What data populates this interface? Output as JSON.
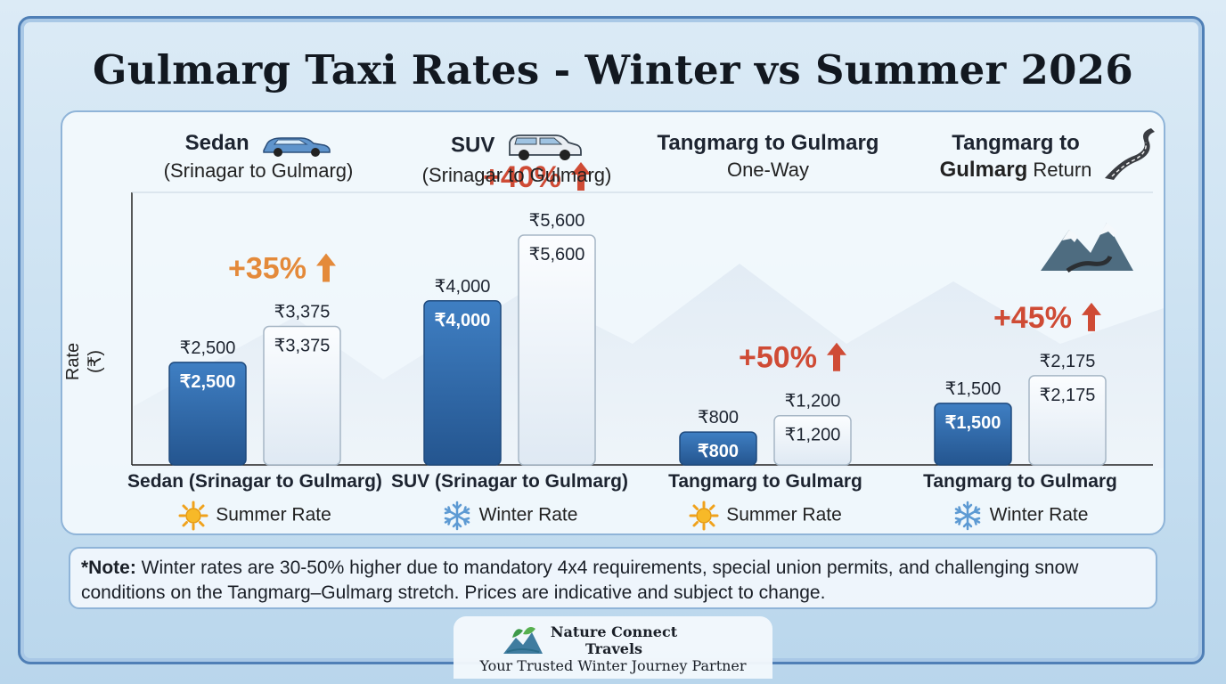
{
  "title": "Gulmarg Taxi Rates - Winter vs Summer 2026",
  "chart_data": {
    "type": "bar",
    "ylabel": "Rate (₹)",
    "ylim": [
      0,
      6600
    ],
    "headers": [
      {
        "line1": "Sedan",
        "line2": "(Srinagar to Gulmarg)",
        "icon": "sedan-car-icon"
      },
      {
        "line1": "SUV",
        "line2": "(Srinagar to Gulmarg)",
        "icon": "suv-car-icon"
      },
      {
        "line1": "Tangmarg to Gulmarg",
        "line2": "One-Way",
        "icon": ""
      },
      {
        "line1": "Tangmarg to",
        "line2_bold": "Gulmarg",
        "line2": "Return",
        "icon": "winding-road-icon"
      }
    ],
    "categories": [
      "Sedan (Srinagar to Gulmarg)",
      "SUV (Srinagar to Gulmarg)",
      "Tangmarg to Gulmarg",
      "Tangmarg to Gulmarg"
    ],
    "legend_labels": [
      "Summer Rate",
      "Winter Rate",
      "Summer Rate",
      "Winter Rate"
    ],
    "legend_icons": [
      "sun-icon",
      "snowflake-icon",
      "sun-icon",
      "snowflake-icon"
    ],
    "series": [
      {
        "name": "Summer Rate",
        "values": [
          2500,
          4000,
          800,
          1500
        ],
        "labels": [
          "₹2,500",
          "₹4,000",
          "₹800",
          "₹1,500"
        ],
        "color": "#2f68ab"
      },
      {
        "name": "Winter Rate",
        "values": [
          3375,
          5600,
          1200,
          2175
        ],
        "labels": [
          "₹3,375",
          "₹5,600",
          "₹1,200",
          "₹2,175"
        ],
        "color": "#eef3f8"
      }
    ],
    "increase_labels": [
      "+35%",
      "+40%",
      "+50%",
      "+45%"
    ],
    "increase_colors": [
      "#e48a3a",
      "#cf4b35",
      "#cf4b35",
      "#cf4b35"
    ]
  },
  "note": {
    "prefix": "*Note:",
    "text": " Winter rates are 30-50% higher due to mandatory 4x4 requirements, special union permits, and challenging snow conditions on the Tangmarg–Gulmarg stretch.  Prices are indicative and subject to change."
  },
  "brand": {
    "name": "Nature Connect Travels",
    "tagline": "Your Trusted Winter Journey Partner"
  }
}
